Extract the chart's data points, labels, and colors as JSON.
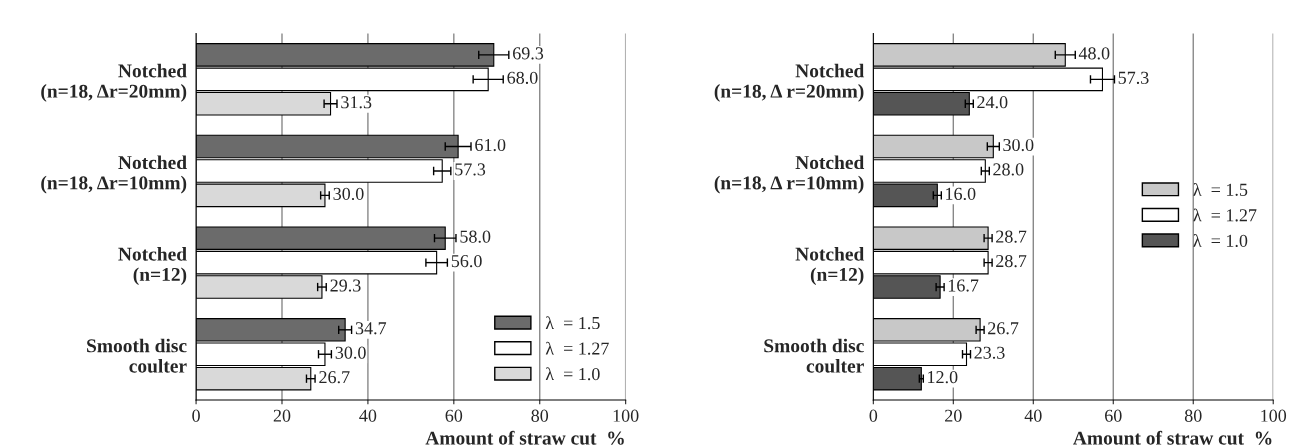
{
  "chart_data": [
    {
      "type": "bar",
      "orientation": "horizontal",
      "categories": [
        "Notched\n(n=18, Δr=20mm)",
        "Notched\n(n=18, Δr=10mm)",
        "Notched\n(n=12)",
        "Smooth disc\ncoulter"
      ],
      "xlabel": "Amount of straw cut  %",
      "xlim": [
        0,
        100
      ],
      "xticks": [
        0,
        20,
        40,
        60,
        80,
        100
      ],
      "grid": "x",
      "legend": "lower right",
      "series": [
        {
          "name": "λ  = 1.5",
          "color": "#6b6b6b",
          "values": [
            69.3,
            61.0,
            58.0,
            34.7
          ],
          "errors": [
            3.5,
            3,
            2.5,
            1.5
          ],
          "value_labels": [
            "69.3",
            "61.0",
            "58.0",
            "34.7"
          ]
        },
        {
          "name": "λ  = 1.27",
          "color": "#ffffff",
          "values": [
            68.0,
            57.3,
            56.0,
            30.0
          ],
          "errors": [
            3.5,
            2,
            2.5,
            1.5
          ],
          "value_labels": [
            "68.0",
            "57.3",
            "56.0",
            "30.0"
          ]
        },
        {
          "name": "λ  = 1.0",
          "color": "#d9d9d9",
          "values": [
            31.3,
            30.0,
            29.3,
            26.7
          ],
          "errors": [
            1.5,
            1,
            1,
            1
          ],
          "value_labels": [
            "31.3",
            "30.0",
            "29.3",
            "26.7"
          ]
        }
      ]
    },
    {
      "type": "bar",
      "orientation": "horizontal",
      "categories": [
        "Notched\n(n=18, Δ r=20mm)",
        "Notched\n(n=18, Δ r=10mm)",
        "Notched\n(n=12)",
        "Smooth disc\ncoulter"
      ],
      "xlabel": "Amount of straw cut  %",
      "xlim": [
        0,
        100
      ],
      "xticks": [
        0,
        20,
        40,
        60,
        80,
        100
      ],
      "grid": "x",
      "legend": "right",
      "series": [
        {
          "name": "λ  = 1.5",
          "color": "#c8c8c8",
          "values": [
            48.0,
            30.0,
            28.7,
            26.7
          ],
          "errors": [
            2.5,
            1.5,
            1,
            1
          ],
          "value_labels": [
            "48.0",
            "30.0",
            "28.7",
            "26.7"
          ]
        },
        {
          "name": "λ  = 1.27",
          "color": "#ffffff",
          "values": [
            57.3,
            28.0,
            28.7,
            23.3
          ],
          "errors": [
            3,
            1,
            1,
            1
          ],
          "value_labels": [
            "57.3",
            "28.0",
            "28.7",
            "23.3"
          ]
        },
        {
          "name": "λ  = 1.0",
          "color": "#555555",
          "values": [
            24.0,
            16.0,
            16.7,
            12.0
          ],
          "errors": [
            1,
            1,
            1,
            0.5
          ],
          "value_labels": [
            "24.0",
            "16.0",
            "16.7",
            "12.0"
          ]
        }
      ]
    }
  ]
}
